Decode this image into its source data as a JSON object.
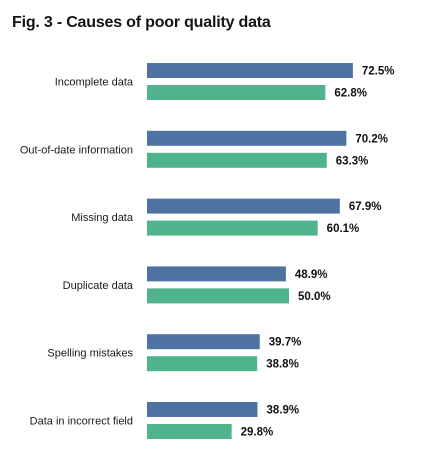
{
  "title": "Fig. 3  - Causes of poor quality data",
  "colors": {
    "series_1": "#4e73a3",
    "series_2": "#4fb38c"
  },
  "chart_data": {
    "type": "bar",
    "orientation": "horizontal",
    "title": "Fig. 3  - Causes of poor quality data",
    "categories": [
      "Incomplete data",
      "Out-of-date information",
      "Missing data",
      "Duplicate data",
      "Spelling mistakes",
      "Data in incorrect field"
    ],
    "series": [
      {
        "values": [
          72.5,
          70.2,
          67.9,
          48.9,
          39.7,
          38.9
        ]
      },
      {
        "values": [
          62.8,
          63.3,
          60.1,
          50.0,
          38.8,
          29.8
        ]
      }
    ],
    "value_format": "percent_1dp",
    "xlabel": "",
    "ylabel": "",
    "grid": false,
    "axes_visible": false,
    "data_labels": true
  }
}
